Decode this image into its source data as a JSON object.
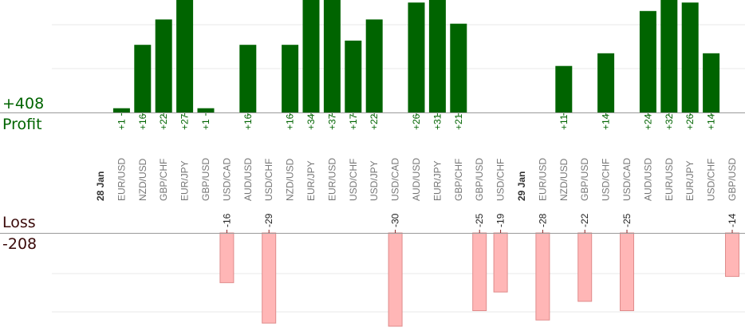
{
  "summary": {
    "profit_total": "+408",
    "profit_label": "Profit",
    "loss_label": "Loss",
    "loss_total": "-208"
  },
  "chart_data": {
    "type": "bar",
    "series": [
      {
        "name": "Profit",
        "color": "#006400"
      },
      {
        "name": "Loss",
        "color": "#ffb6b6"
      }
    ],
    "categories": [
      {
        "label": "28 Jan",
        "is_date": true
      },
      {
        "label": "EUR/USD",
        "value": 1
      },
      {
        "label": "NZD/USD",
        "value": 16
      },
      {
        "label": "GBP/CHF",
        "value": 22
      },
      {
        "label": "EUR/JPY",
        "value": 27
      },
      {
        "label": "GBP/USD",
        "value": 1
      },
      {
        "label": "USD/CAD",
        "value": -16
      },
      {
        "label": "AUD/USD",
        "value": 16
      },
      {
        "label": "USD/CHF",
        "value": -29
      },
      {
        "label": "NZD/USD",
        "value": 16
      },
      {
        "label": "EUR/JPY",
        "value": 34
      },
      {
        "label": "EUR/USD",
        "value": 37
      },
      {
        "label": "USD/CHF",
        "value": 17
      },
      {
        "label": "USD/JPY",
        "value": 22
      },
      {
        "label": "USD/CAD",
        "value": -30
      },
      {
        "label": "AUD/USD",
        "value": 26
      },
      {
        "label": "EUR/JPY",
        "value": 31
      },
      {
        "label": "GBP/CHF",
        "value": 21
      },
      {
        "label": "GBP/USD",
        "value": -25
      },
      {
        "label": "USD/CHF",
        "value": -19
      },
      {
        "label": "29 Jan",
        "is_date": true
      },
      {
        "label": "EUR/USD",
        "value": -28
      },
      {
        "label": "NZD/USD",
        "value": 11
      },
      {
        "label": "GBP/USD",
        "value": -22
      },
      {
        "label": "USD/CHF",
        "value": 14
      },
      {
        "label": "USD/CAD",
        "value": -25
      },
      {
        "label": "AUD/USD",
        "value": 24
      },
      {
        "label": "EUR/USD",
        "value": 32
      },
      {
        "label": "EUR/JPY",
        "value": 26
      },
      {
        "label": "USD/CHF",
        "value": 14
      },
      {
        "label": "GBP/USD",
        "value": -14
      }
    ]
  }
}
